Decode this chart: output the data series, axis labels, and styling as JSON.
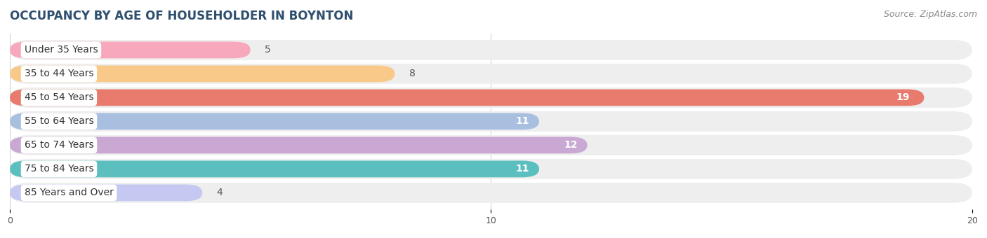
{
  "title": "OCCUPANCY BY AGE OF HOUSEHOLDER IN BOYNTON",
  "source": "Source: ZipAtlas.com",
  "categories": [
    "Under 35 Years",
    "35 to 44 Years",
    "45 to 54 Years",
    "55 to 64 Years",
    "65 to 74 Years",
    "75 to 84 Years",
    "85 Years and Over"
  ],
  "values": [
    5,
    8,
    19,
    11,
    12,
    11,
    4
  ],
  "bar_colors": [
    "#f7a8bc",
    "#f9c98a",
    "#e87b6e",
    "#a8bfe0",
    "#c9a8d4",
    "#5bbfbf",
    "#c5c8f0"
  ],
  "bar_bg_color": "#eeeeee",
  "xlim": [
    0,
    20
  ],
  "xticks": [
    0,
    10,
    20
  ],
  "title_fontsize": 12,
  "label_fontsize": 10,
  "value_fontsize": 10,
  "source_fontsize": 9,
  "background_color": "#ffffff"
}
